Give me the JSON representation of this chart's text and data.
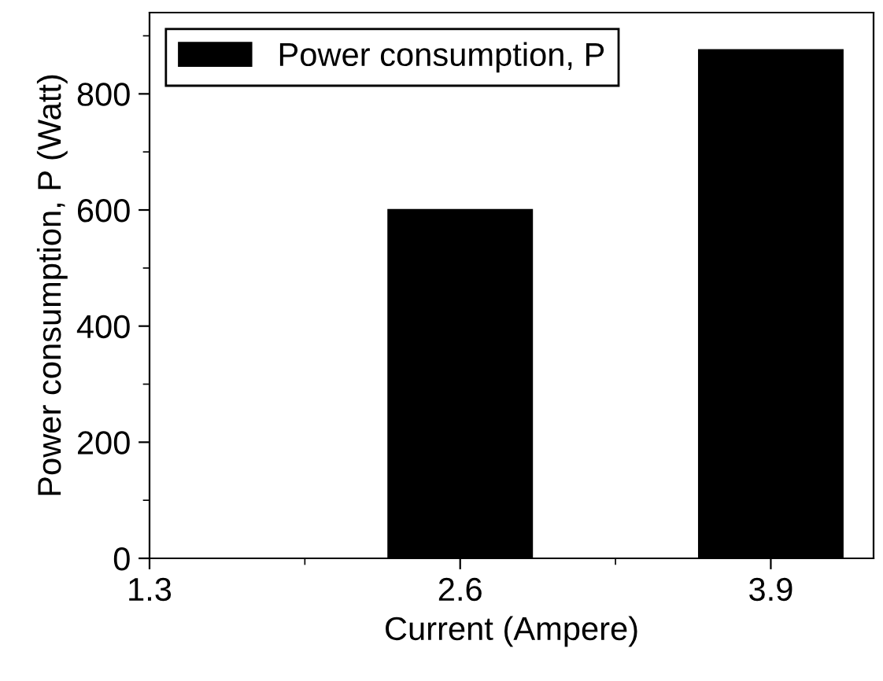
{
  "chart_data": {
    "type": "bar",
    "x": [
      2.6,
      3.9
    ],
    "series": [
      {
        "name": "Power consumption, P",
        "color": "#000000",
        "values": [
          600,
          875
        ]
      }
    ],
    "xlabel": "Current (Ampere)",
    "ylabel": "Power consumption, P (Watt)",
    "xlim": [
      1.3,
      4.33
    ],
    "xticks": [
      1.3,
      2.6,
      3.9
    ],
    "ylim": [
      0,
      940
    ],
    "yticks": [
      0,
      200,
      400,
      600,
      800
    ],
    "grid": false,
    "legend": "top left"
  }
}
